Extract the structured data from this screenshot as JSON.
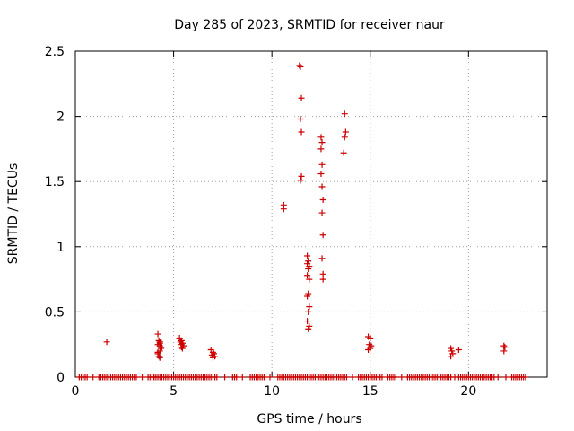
{
  "chart_data": {
    "type": "scatter",
    "title": "Day 285 of 2023, SRMTID for receiver naur",
    "xlabel": "GPS time / hours",
    "ylabel": "SRMTID / TECUs",
    "xlim": [
      0,
      24
    ],
    "ylim": [
      0,
      2.5
    ],
    "xticks": [
      0,
      5,
      10,
      15,
      20
    ],
    "yticks": [
      0,
      0.5,
      1,
      1.5,
      2,
      2.5
    ],
    "xtick_labels": [
      "0",
      "5",
      "10",
      "15",
      "20"
    ],
    "ytick_labels": [
      "0",
      "0.5",
      "1",
      "1.5",
      "2",
      "2.5"
    ],
    "grid": true,
    "marker": "plus",
    "series": [
      {
        "name": "SRMTID",
        "color": "#cc0000",
        "zero_x_ranges": [
          [
            0.2,
            0.6
          ],
          [
            1.2,
            3.1
          ],
          [
            3.7,
            7.2
          ],
          [
            8.0,
            8.2
          ],
          [
            8.9,
            9.6
          ],
          [
            10.3,
            13.8
          ],
          [
            14.4,
            15.6
          ],
          [
            16.0,
            16.3
          ],
          [
            16.9,
            19.1
          ],
          [
            19.5,
            21.3
          ],
          [
            22.2,
            22.9
          ]
        ],
        "zero_x_points": [
          0.9,
          3.4,
          4.0,
          7.6,
          8.5,
          9.9,
          14.1,
          15.9,
          16.6,
          19.3,
          21.5,
          21.9
        ],
        "x": [
          1.6,
          4.2,
          4.25,
          4.3,
          4.2,
          4.3,
          4.35,
          4.3,
          4.2,
          4.25,
          4.3,
          4.4,
          4.2,
          4.3,
          5.3,
          5.4,
          5.35,
          5.45,
          5.4,
          5.5,
          5.4,
          5.45,
          6.9,
          7.0,
          7.05,
          6.95,
          7.0,
          7.1,
          10.6,
          10.6,
          11.4,
          11.45,
          11.5,
          11.45,
          11.5,
          11.5,
          11.45,
          11.8,
          11.85,
          11.8,
          11.9,
          11.85,
          11.8,
          11.9,
          11.85,
          11.8,
          11.9,
          11.85,
          11.8,
          11.9,
          11.85,
          12.5,
          12.55,
          12.5,
          12.55,
          12.5,
          12.55,
          12.6,
          12.55,
          12.6,
          12.55,
          12.6,
          12.6,
          13.7,
          13.75,
          13.7,
          13.65,
          14.9,
          15.0,
          14.95,
          15.05,
          15.0,
          14.9,
          19.1,
          19.15,
          19.2,
          19.1,
          19.5,
          21.8,
          21.85,
          21.8
        ],
        "y": [
          0.27,
          0.33,
          0.28,
          0.26,
          0.25,
          0.24,
          0.22,
          0.2,
          0.18,
          0.16,
          0.27,
          0.23,
          0.19,
          0.15,
          0.3,
          0.28,
          0.27,
          0.26,
          0.25,
          0.24,
          0.23,
          0.22,
          0.21,
          0.19,
          0.18,
          0.17,
          0.15,
          0.16,
          1.32,
          1.29,
          2.39,
          2.38,
          2.14,
          1.98,
          1.88,
          1.54,
          1.51,
          0.93,
          0.89,
          0.87,
          0.85,
          0.83,
          0.78,
          0.75,
          0.64,
          0.62,
          0.54,
          0.5,
          0.43,
          0.39,
          0.37,
          1.84,
          1.8,
          1.75,
          1.63,
          1.56,
          1.46,
          1.36,
          1.26,
          1.09,
          0.91,
          0.79,
          0.75,
          2.02,
          1.88,
          1.84,
          1.72,
          0.31,
          0.3,
          0.25,
          0.24,
          0.22,
          0.21,
          0.22,
          0.2,
          0.18,
          0.16,
          0.21,
          0.24,
          0.23,
          0.2
        ]
      }
    ]
  }
}
